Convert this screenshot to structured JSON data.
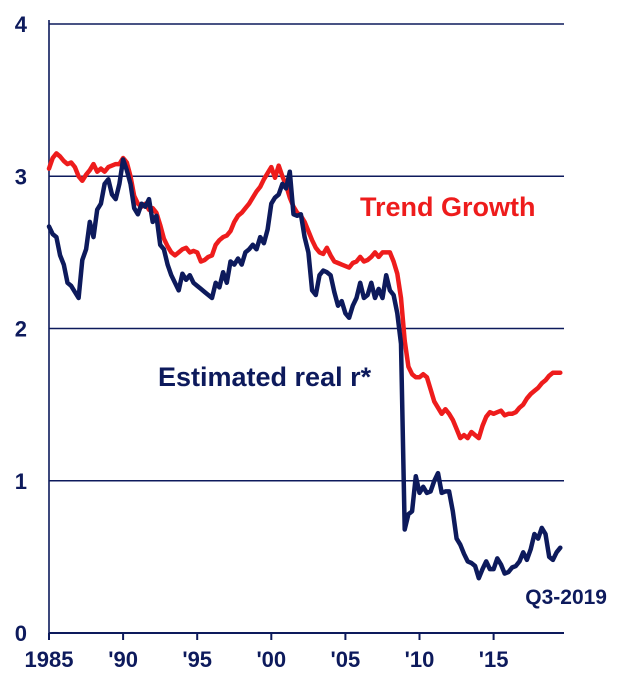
{
  "chart_data": {
    "type": "line",
    "title": "",
    "xlabel": "",
    "ylabel": "",
    "xlim": [
      1985,
      2019.75
    ],
    "ylim": [
      0,
      4
    ],
    "y_ticks": [
      0,
      1,
      2,
      3,
      4
    ],
    "x_ticks": [
      {
        "value": 1985,
        "label": "1985"
      },
      {
        "value": 1990,
        "label": "'90"
      },
      {
        "value": 1995,
        "label": "'95"
      },
      {
        "value": 2000,
        "label": "'00"
      },
      {
        "value": 2005,
        "label": "'05"
      },
      {
        "value": 2010,
        "label": "'10"
      },
      {
        "value": 2015,
        "label": "'15"
      }
    ],
    "grid": "horizontal",
    "series": [
      {
        "name": "Trend Growth",
        "color": "#ee1c1c",
        "points": [
          [
            1985.0,
            3.05
          ],
          [
            1985.25,
            3.12
          ],
          [
            1985.5,
            3.15
          ],
          [
            1985.75,
            3.13
          ],
          [
            1986.0,
            3.1
          ],
          [
            1986.25,
            3.08
          ],
          [
            1986.5,
            3.09
          ],
          [
            1986.75,
            3.06
          ],
          [
            1987.0,
            3.0
          ],
          [
            1987.25,
            2.97
          ],
          [
            1987.5,
            3.01
          ],
          [
            1987.75,
            3.04
          ],
          [
            1988.0,
            3.08
          ],
          [
            1988.25,
            3.03
          ],
          [
            1988.5,
            3.05
          ],
          [
            1988.75,
            3.03
          ],
          [
            1989.0,
            3.06
          ],
          [
            1989.25,
            3.07
          ],
          [
            1989.5,
            3.08
          ],
          [
            1989.75,
            3.08
          ],
          [
            1990.0,
            3.12
          ],
          [
            1990.25,
            3.09
          ],
          [
            1990.5,
            3.0
          ],
          [
            1990.75,
            2.87
          ],
          [
            1991.0,
            2.82
          ],
          [
            1991.25,
            2.8
          ],
          [
            1991.5,
            2.82
          ],
          [
            1991.75,
            2.78
          ],
          [
            1992.0,
            2.79
          ],
          [
            1992.25,
            2.76
          ],
          [
            1992.5,
            2.68
          ],
          [
            1992.75,
            2.59
          ],
          [
            1993.0,
            2.54
          ],
          [
            1993.25,
            2.5
          ],
          [
            1993.5,
            2.48
          ],
          [
            1993.75,
            2.5
          ],
          [
            1994.0,
            2.52
          ],
          [
            1994.25,
            2.53
          ],
          [
            1994.5,
            2.5
          ],
          [
            1994.75,
            2.51
          ],
          [
            1995.0,
            2.5
          ],
          [
            1995.25,
            2.44
          ],
          [
            1995.5,
            2.45
          ],
          [
            1995.75,
            2.47
          ],
          [
            1996.0,
            2.48
          ],
          [
            1996.25,
            2.55
          ],
          [
            1996.5,
            2.58
          ],
          [
            1996.75,
            2.6
          ],
          [
            1997.0,
            2.61
          ],
          [
            1997.25,
            2.64
          ],
          [
            1997.5,
            2.7
          ],
          [
            1997.75,
            2.74
          ],
          [
            1998.0,
            2.76
          ],
          [
            1998.25,
            2.79
          ],
          [
            1998.5,
            2.82
          ],
          [
            1998.75,
            2.86
          ],
          [
            1999.0,
            2.9
          ],
          [
            1999.25,
            2.93
          ],
          [
            1999.5,
            2.98
          ],
          [
            1999.75,
            3.02
          ],
          [
            2000.0,
            3.06
          ],
          [
            2000.25,
            2.99
          ],
          [
            2000.5,
            3.07
          ],
          [
            2000.75,
            3.0
          ],
          [
            2001.0,
            2.94
          ],
          [
            2001.25,
            2.86
          ],
          [
            2001.5,
            2.8
          ],
          [
            2001.75,
            2.76
          ],
          [
            2002.0,
            2.74
          ],
          [
            2002.25,
            2.7
          ],
          [
            2002.5,
            2.64
          ],
          [
            2002.75,
            2.58
          ],
          [
            2003.0,
            2.53
          ],
          [
            2003.25,
            2.5
          ],
          [
            2003.5,
            2.49
          ],
          [
            2003.75,
            2.53
          ],
          [
            2004.0,
            2.48
          ],
          [
            2004.25,
            2.44
          ],
          [
            2004.5,
            2.43
          ],
          [
            2004.75,
            2.42
          ],
          [
            2005.0,
            2.41
          ],
          [
            2005.25,
            2.4
          ],
          [
            2005.5,
            2.43
          ],
          [
            2005.75,
            2.44
          ],
          [
            2006.0,
            2.47
          ],
          [
            2006.25,
            2.44
          ],
          [
            2006.5,
            2.45
          ],
          [
            2006.75,
            2.47
          ],
          [
            2007.0,
            2.5
          ],
          [
            2007.25,
            2.47
          ],
          [
            2007.5,
            2.5
          ],
          [
            2007.75,
            2.5
          ],
          [
            2008.0,
            2.5
          ],
          [
            2008.25,
            2.44
          ],
          [
            2008.5,
            2.36
          ],
          [
            2008.75,
            2.2
          ],
          [
            2009.0,
            1.92
          ],
          [
            2009.25,
            1.75
          ],
          [
            2009.5,
            1.7
          ],
          [
            2009.75,
            1.68
          ],
          [
            2010.0,
            1.68
          ],
          [
            2010.25,
            1.7
          ],
          [
            2010.5,
            1.68
          ],
          [
            2010.75,
            1.6
          ],
          [
            2011.0,
            1.52
          ],
          [
            2011.25,
            1.48
          ],
          [
            2011.5,
            1.44
          ],
          [
            2011.75,
            1.47
          ],
          [
            2012.0,
            1.44
          ],
          [
            2012.25,
            1.4
          ],
          [
            2012.5,
            1.34
          ],
          [
            2012.75,
            1.28
          ],
          [
            2013.0,
            1.3
          ],
          [
            2013.25,
            1.28
          ],
          [
            2013.5,
            1.32
          ],
          [
            2013.75,
            1.3
          ],
          [
            2014.0,
            1.28
          ],
          [
            2014.25,
            1.36
          ],
          [
            2014.5,
            1.42
          ],
          [
            2014.75,
            1.45
          ],
          [
            2015.0,
            1.44
          ],
          [
            2015.25,
            1.45
          ],
          [
            2015.5,
            1.46
          ],
          [
            2015.75,
            1.43
          ],
          [
            2016.0,
            1.44
          ],
          [
            2016.25,
            1.44
          ],
          [
            2016.5,
            1.45
          ],
          [
            2016.75,
            1.48
          ],
          [
            2017.0,
            1.5
          ],
          [
            2017.25,
            1.54
          ],
          [
            2017.5,
            1.57
          ],
          [
            2017.75,
            1.59
          ],
          [
            2018.0,
            1.61
          ],
          [
            2018.25,
            1.64
          ],
          [
            2018.5,
            1.66
          ],
          [
            2018.75,
            1.69
          ],
          [
            2019.0,
            1.71
          ],
          [
            2019.25,
            1.71
          ],
          [
            2019.5,
            1.71
          ]
        ]
      },
      {
        "name": "Estimated real r*",
        "color": "#0d1a5c",
        "points": [
          [
            1985.0,
            2.67
          ],
          [
            1985.25,
            2.62
          ],
          [
            1985.5,
            2.6
          ],
          [
            1985.75,
            2.48
          ],
          [
            1986.0,
            2.42
          ],
          [
            1986.25,
            2.3
          ],
          [
            1986.5,
            2.28
          ],
          [
            1986.75,
            2.24
          ],
          [
            1987.0,
            2.2
          ],
          [
            1987.25,
            2.45
          ],
          [
            1987.5,
            2.52
          ],
          [
            1987.75,
            2.7
          ],
          [
            1988.0,
            2.6
          ],
          [
            1988.25,
            2.78
          ],
          [
            1988.5,
            2.82
          ],
          [
            1988.75,
            2.95
          ],
          [
            1989.0,
            2.98
          ],
          [
            1989.25,
            2.88
          ],
          [
            1989.5,
            2.85
          ],
          [
            1989.75,
            2.95
          ],
          [
            1990.0,
            3.11
          ],
          [
            1990.25,
            3.04
          ],
          [
            1990.5,
            2.95
          ],
          [
            1990.75,
            2.79
          ],
          [
            1991.0,
            2.75
          ],
          [
            1991.25,
            2.82
          ],
          [
            1991.5,
            2.8
          ],
          [
            1991.75,
            2.85
          ],
          [
            1992.0,
            2.7
          ],
          [
            1992.25,
            2.74
          ],
          [
            1992.5,
            2.55
          ],
          [
            1992.75,
            2.52
          ],
          [
            1993.0,
            2.42
          ],
          [
            1993.25,
            2.35
          ],
          [
            1993.5,
            2.3
          ],
          [
            1993.75,
            2.25
          ],
          [
            1994.0,
            2.36
          ],
          [
            1994.25,
            2.32
          ],
          [
            1994.5,
            2.35
          ],
          [
            1994.75,
            2.3
          ],
          [
            1995.0,
            2.28
          ],
          [
            1995.25,
            2.26
          ],
          [
            1995.5,
            2.24
          ],
          [
            1995.75,
            2.22
          ],
          [
            1996.0,
            2.2
          ],
          [
            1996.25,
            2.3
          ],
          [
            1996.5,
            2.27
          ],
          [
            1996.75,
            2.37
          ],
          [
            1997.0,
            2.3
          ],
          [
            1997.25,
            2.44
          ],
          [
            1997.5,
            2.42
          ],
          [
            1997.75,
            2.46
          ],
          [
            1998.0,
            2.42
          ],
          [
            1998.25,
            2.5
          ],
          [
            1998.5,
            2.52
          ],
          [
            1998.75,
            2.55
          ],
          [
            1999.0,
            2.52
          ],
          [
            1999.25,
            2.6
          ],
          [
            1999.5,
            2.56
          ],
          [
            1999.75,
            2.65
          ],
          [
            2000.0,
            2.82
          ],
          [
            2000.25,
            2.86
          ],
          [
            2000.5,
            2.88
          ],
          [
            2000.75,
            2.95
          ],
          [
            2001.0,
            2.92
          ],
          [
            2001.25,
            3.03
          ],
          [
            2001.5,
            2.75
          ],
          [
            2001.75,
            2.74
          ],
          [
            2002.0,
            2.75
          ],
          [
            2002.25,
            2.6
          ],
          [
            2002.5,
            2.5
          ],
          [
            2002.75,
            2.25
          ],
          [
            2003.0,
            2.22
          ],
          [
            2003.25,
            2.35
          ],
          [
            2003.5,
            2.38
          ],
          [
            2003.75,
            2.37
          ],
          [
            2004.0,
            2.35
          ],
          [
            2004.25,
            2.24
          ],
          [
            2004.5,
            2.15
          ],
          [
            2004.75,
            2.18
          ],
          [
            2005.0,
            2.1
          ],
          [
            2005.25,
            2.07
          ],
          [
            2005.5,
            2.15
          ],
          [
            2005.75,
            2.2
          ],
          [
            2006.0,
            2.3
          ],
          [
            2006.25,
            2.2
          ],
          [
            2006.5,
            2.22
          ],
          [
            2006.75,
            2.3
          ],
          [
            2007.0,
            2.2
          ],
          [
            2007.25,
            2.26
          ],
          [
            2007.5,
            2.2
          ],
          [
            2007.75,
            2.35
          ],
          [
            2008.0,
            2.25
          ],
          [
            2008.25,
            2.22
          ],
          [
            2008.5,
            2.1
          ],
          [
            2008.75,
            1.9
          ],
          [
            2009.0,
            0.68
          ],
          [
            2009.25,
            0.78
          ],
          [
            2009.5,
            0.8
          ],
          [
            2009.75,
            1.03
          ],
          [
            2010.0,
            0.92
          ],
          [
            2010.25,
            0.96
          ],
          [
            2010.5,
            0.92
          ],
          [
            2010.75,
            0.93
          ],
          [
            2011.0,
            1.0
          ],
          [
            2011.25,
            1.05
          ],
          [
            2011.5,
            0.92
          ],
          [
            2011.75,
            0.93
          ],
          [
            2012.0,
            0.93
          ],
          [
            2012.25,
            0.8
          ],
          [
            2012.5,
            0.62
          ],
          [
            2012.75,
            0.58
          ],
          [
            2013.0,
            0.52
          ],
          [
            2013.25,
            0.47
          ],
          [
            2013.5,
            0.46
          ],
          [
            2013.75,
            0.44
          ],
          [
            2014.0,
            0.36
          ],
          [
            2014.25,
            0.42
          ],
          [
            2014.5,
            0.47
          ],
          [
            2014.75,
            0.42
          ],
          [
            2015.0,
            0.42
          ],
          [
            2015.25,
            0.49
          ],
          [
            2015.5,
            0.45
          ],
          [
            2015.75,
            0.39
          ],
          [
            2016.0,
            0.4
          ],
          [
            2016.25,
            0.43
          ],
          [
            2016.5,
            0.44
          ],
          [
            2016.75,
            0.47
          ],
          [
            2017.0,
            0.53
          ],
          [
            2017.25,
            0.48
          ],
          [
            2017.5,
            0.55
          ],
          [
            2017.75,
            0.65
          ],
          [
            2018.0,
            0.62
          ],
          [
            2018.25,
            0.69
          ],
          [
            2018.5,
            0.65
          ],
          [
            2018.75,
            0.5
          ],
          [
            2019.0,
            0.48
          ],
          [
            2019.25,
            0.53
          ],
          [
            2019.5,
            0.56
          ]
        ]
      }
    ],
    "series_labels": [
      {
        "text": "Trend Growth",
        "color": "#ee1c1c"
      },
      {
        "text": "Estimated real r*",
        "color": "#0d1a5c"
      }
    ],
    "annotation": "Q3-2019"
  },
  "colors": {
    "axis": "#0d1a5c",
    "grid": "#0d1a5c"
  }
}
